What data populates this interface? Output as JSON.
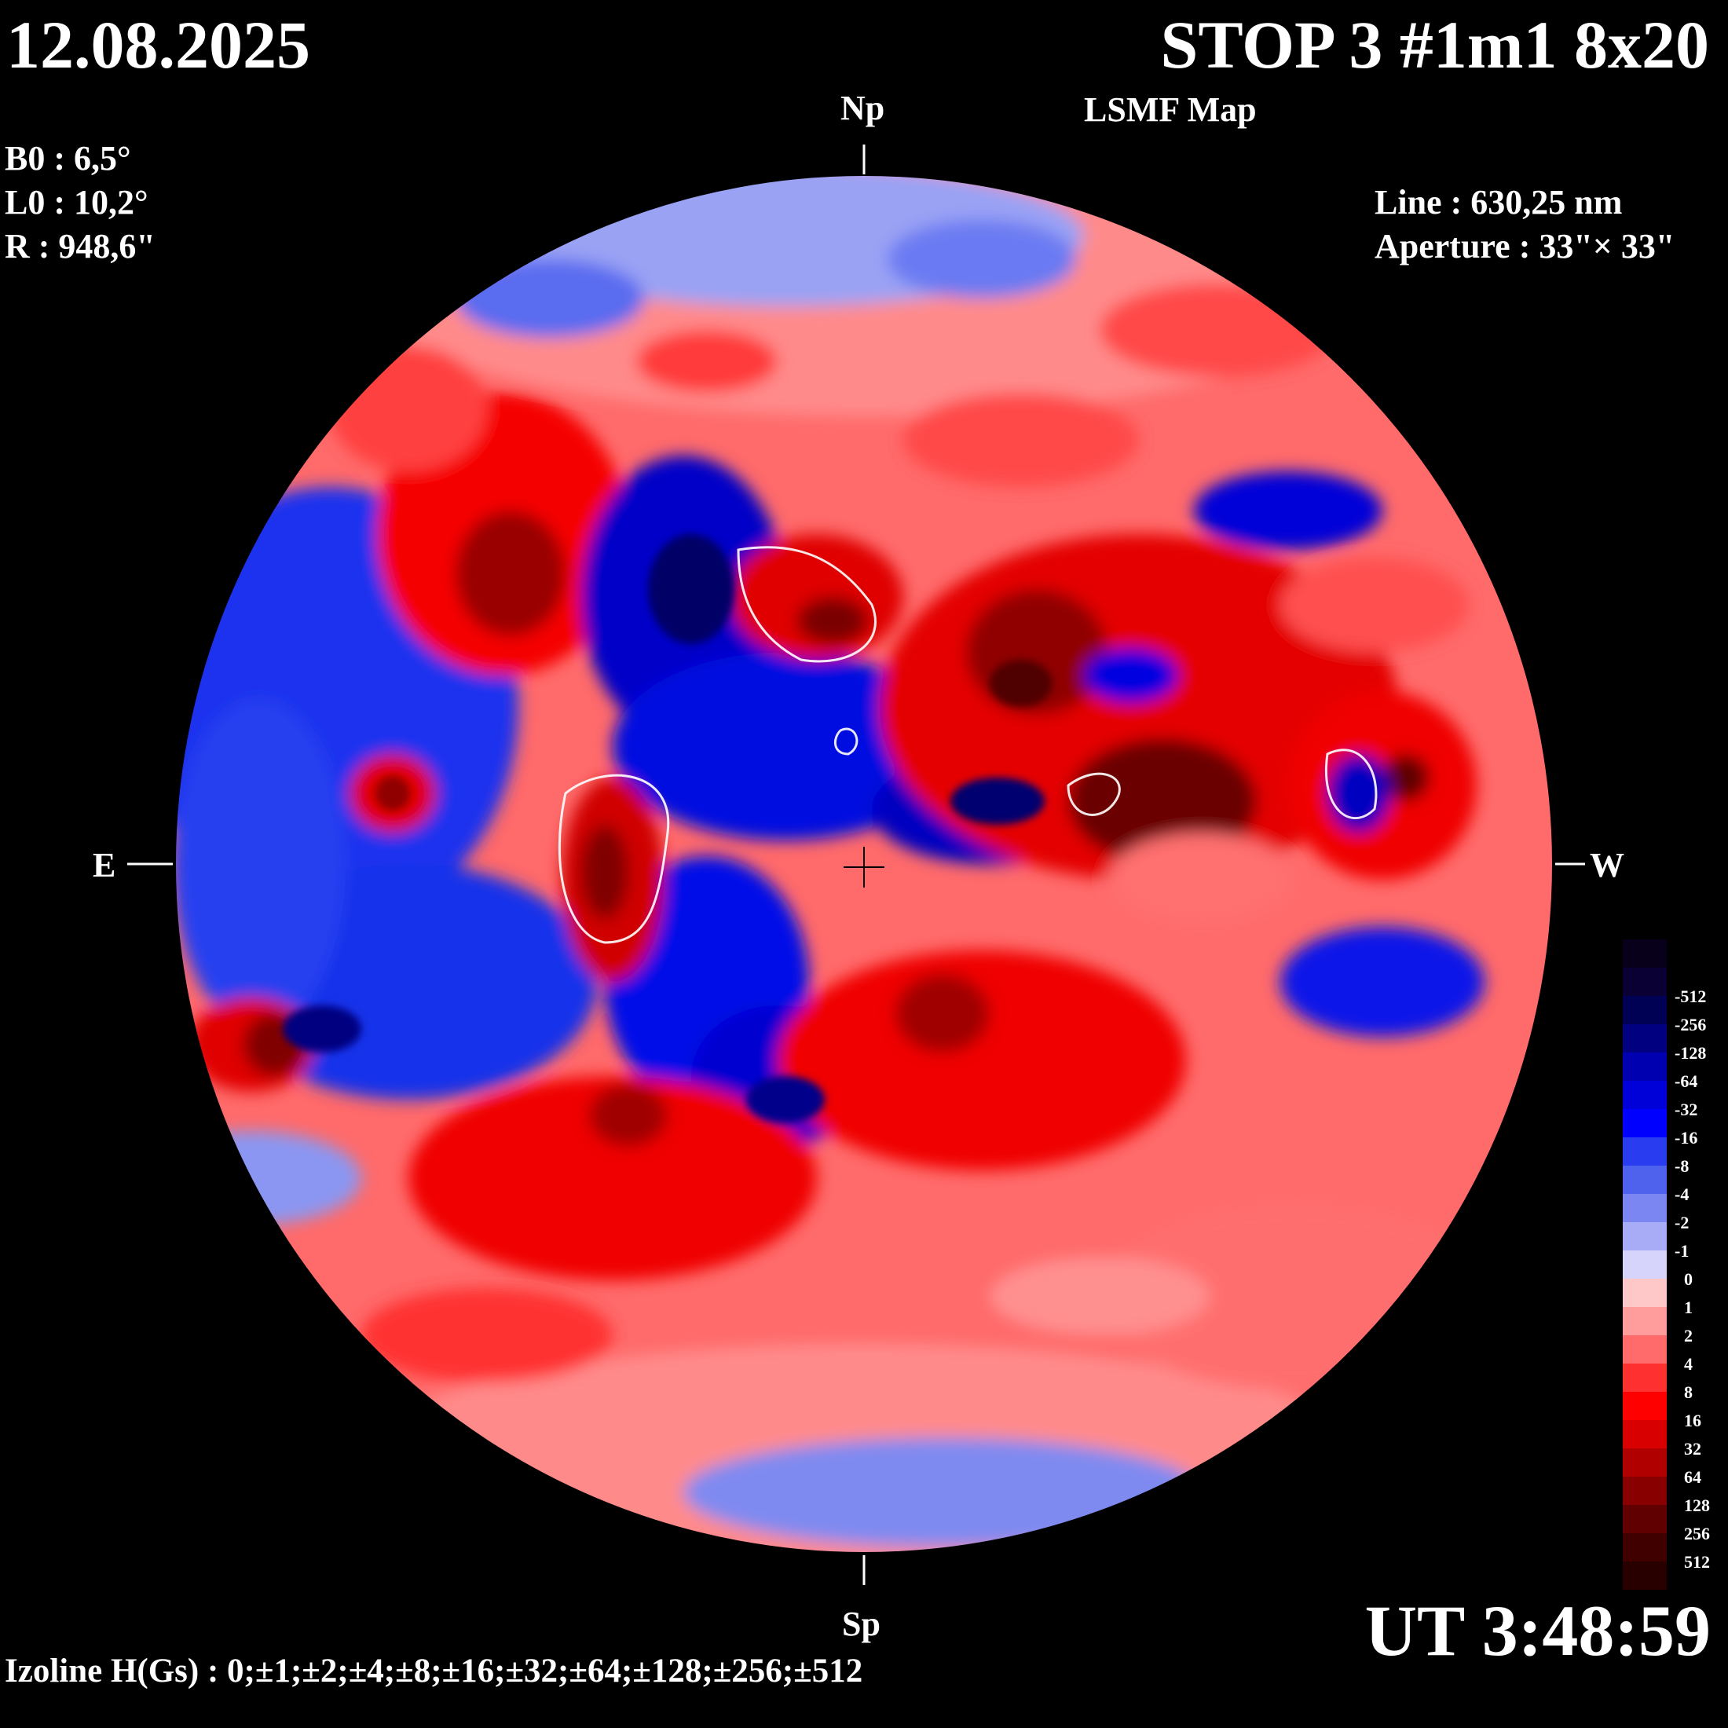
{
  "header": {
    "date": "12.08.2025",
    "title": "STOP 3 #1m1 8x20",
    "subtitle": "LSMF  Map"
  },
  "params_left": {
    "b0": "B0 : 6,5°",
    "l0": "L0 : 10,2°",
    "r": "R  : 948,6\""
  },
  "params_right": {
    "line": "Line :  630,25 nm",
    "aperture": "Aperture : 33\"× 33\""
  },
  "directions": {
    "north": "Np",
    "south": "Sp",
    "east": "E",
    "west": "W"
  },
  "footer": {
    "izoline": "Izoline H(Gs) : 0;±1;±2;±4;±8;±16;±32;±64;±128;±256;±512",
    "time": "UT 3:48:59"
  },
  "legend": {
    "levels": [
      {
        "label": "",
        "color": "#08001a"
      },
      {
        "label": "-512",
        "color": "#0a0033"
      },
      {
        "label": "-256",
        "color": "#000055"
      },
      {
        "label": "-128",
        "color": "#000080"
      },
      {
        "label": "-64",
        "color": "#0000b0"
      },
      {
        "label": "-32",
        "color": "#0000d8"
      },
      {
        "label": "-16",
        "color": "#0000ff"
      },
      {
        "label": "-8",
        "color": "#2a3cf0"
      },
      {
        "label": "-4",
        "color": "#4f62ee"
      },
      {
        "label": "-2",
        "color": "#7b86f2"
      },
      {
        "label": "-1",
        "color": "#a8acf6"
      },
      {
        "label": "0",
        "color": "#d6d4fb"
      },
      {
        "label": "1",
        "color": "#ffc8c8"
      },
      {
        "label": "2",
        "color": "#ff9c9c"
      },
      {
        "label": "4",
        "color": "#ff6a6a"
      },
      {
        "label": "8",
        "color": "#ff3030"
      },
      {
        "label": "16",
        "color": "#ff0000"
      },
      {
        "label": "32",
        "color": "#d80000"
      },
      {
        "label": "64",
        "color": "#b00000"
      },
      {
        "label": "128",
        "color": "#880000"
      },
      {
        "label": "256",
        "color": "#600000"
      },
      {
        "label": "512",
        "color": "#400000"
      },
      {
        "label": "",
        "color": "#280000"
      }
    ]
  },
  "colors": {
    "background": "#000000",
    "contour_zero": "#ffffff",
    "positive": "#ff0000",
    "negative": "#0000ff"
  }
}
